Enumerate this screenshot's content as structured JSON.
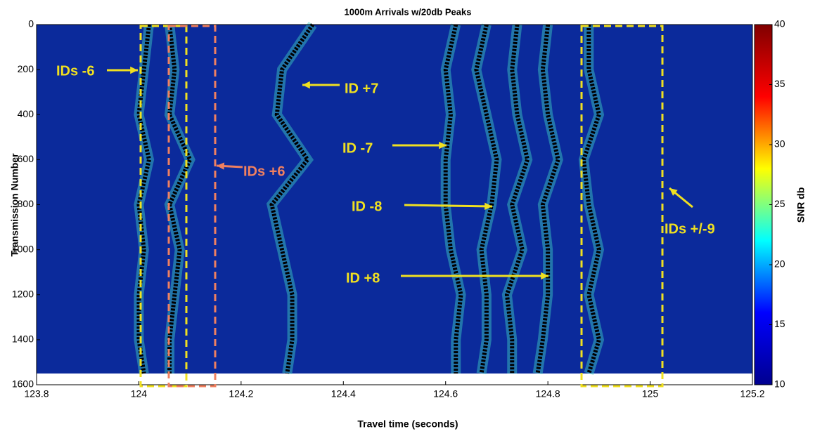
{
  "chart_data": {
    "type": "heatmap",
    "title": "1000m Arrivals w/20db Peaks",
    "x_label": "Travel time (seconds)",
    "y_label": "Transmission Number",
    "colorbar_label": "SNR db",
    "xlim": [
      123.8,
      125.2
    ],
    "xticks": [
      123.8,
      124,
      124.2,
      124.4,
      124.6,
      124.8,
      125,
      125.2
    ],
    "ylim": [
      0,
      1600
    ],
    "yticks": [
      0,
      200,
      400,
      600,
      800,
      1000,
      1200,
      1400,
      1600
    ],
    "clim": [
      10,
      40
    ],
    "cticks": [
      10,
      15,
      20,
      25,
      30,
      35,
      40
    ],
    "colormap": [
      "#00008f",
      "#0000ff",
      "#00ffff",
      "#ffff00",
      "#ff0000",
      "#800000"
    ],
    "background_color": "#0b2a9b",
    "track_color": "#000000",
    "glow_color": "#3fd0c0",
    "transmissions": [
      0,
      200,
      400,
      600,
      800,
      1000,
      1200,
      1400,
      1550
    ],
    "series": [
      {
        "values": [
          124.02,
          124.01,
          124.0,
          124.02,
          124.0,
          124.01,
          124.0,
          124.0,
          124.01
        ]
      },
      {
        "values": [
          124.06,
          124.07,
          124.06,
          124.1,
          124.06,
          124.08,
          124.07,
          124.06,
          124.06
        ]
      },
      {
        "values": [
          124.34,
          124.28,
          124.27,
          124.33,
          124.26,
          124.28,
          124.3,
          124.3,
          124.29
        ]
      },
      {
        "values": [
          124.62,
          124.6,
          124.61,
          124.6,
          124.6,
          124.61,
          124.63,
          124.62,
          124.62
        ]
      },
      {
        "values": [
          124.68,
          124.66,
          124.68,
          124.7,
          124.69,
          124.67,
          124.68,
          124.68,
          124.67
        ]
      },
      {
        "values": [
          124.74,
          124.73,
          124.74,
          124.76,
          124.73,
          124.75,
          124.72,
          124.73,
          124.73
        ]
      },
      {
        "values": [
          124.8,
          124.79,
          124.8,
          124.82,
          124.79,
          124.8,
          124.8,
          124.79,
          124.78
        ]
      },
      {
        "values": [
          124.88,
          124.88,
          124.9,
          124.87,
          124.88,
          124.9,
          124.88,
          124.9,
          124.88
        ]
      }
    ],
    "annotations": [
      {
        "text": "IDs -6",
        "color": "#f0e020"
      },
      {
        "text": "ID +7",
        "color": "#f0e020"
      },
      {
        "text": "IDs +6",
        "color": "#f08060"
      },
      {
        "text": "ID -7",
        "color": "#f0e020"
      },
      {
        "text": "ID -8",
        "color": "#f0e020"
      },
      {
        "text": "IDs +/-9",
        "color": "#f0e020"
      },
      {
        "text": "ID +8",
        "color": "#f0e020"
      }
    ]
  }
}
